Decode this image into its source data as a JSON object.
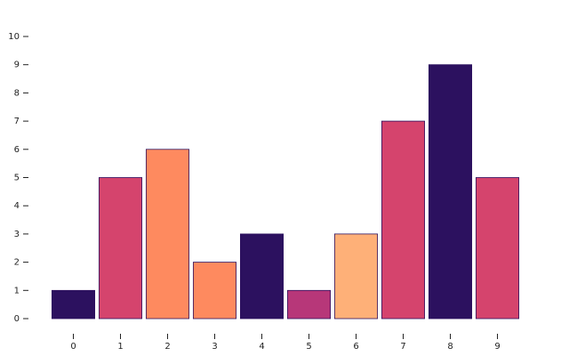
{
  "chart_data": {
    "type": "bar",
    "categories": [
      "0",
      "1",
      "2",
      "3",
      "4",
      "5",
      "6",
      "7",
      "8",
      "9"
    ],
    "values": [
      1,
      5,
      6,
      2,
      3,
      1,
      3,
      7,
      9,
      5
    ],
    "colors": [
      "#2c115f",
      "#d5446d",
      "#fe8a5f",
      "#fe8a5f",
      "#2c115f",
      "#b73779",
      "#feb078",
      "#d5446d",
      "#2c115f",
      "#d5446d"
    ],
    "edgecolor": "#2c115f",
    "ylim": [
      0,
      10
    ],
    "yticks": [
      0,
      1,
      2,
      3,
      4,
      5,
      6,
      7,
      8,
      9,
      10
    ],
    "grid": false
  }
}
